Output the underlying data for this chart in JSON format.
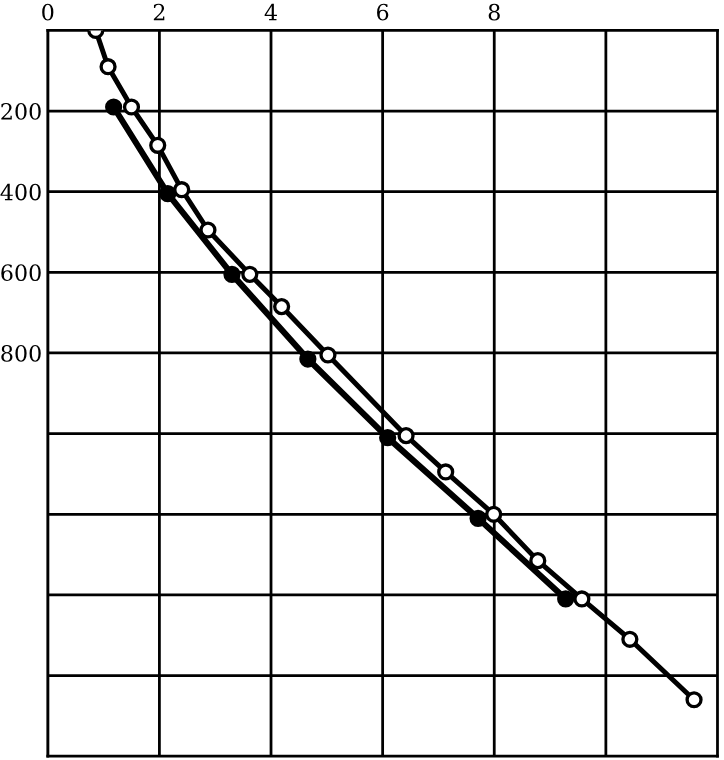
{
  "chart_data": {
    "type": "line",
    "grid": true,
    "marker": "circle",
    "line_style": "solid",
    "xlim": [
      0,
      12
    ],
    "xticks": [
      0,
      2,
      4,
      6,
      8,
      {
        "value": 10,
        "label": null
      }
    ],
    "ylim": [
      1800,
      0
    ],
    "yticks": [
      200,
      400,
      600,
      800,
      {
        "value": 1000,
        "label": null
      },
      {
        "value": 1200,
        "label": null
      },
      {
        "value": 1400,
        "label": null
      },
      {
        "value": 1600,
        "label": null
      }
    ],
    "series": [
      {
        "color": "#000000",
        "x": [
          0.86,
          1.08,
          1.5,
          1.97,
          2.4,
          2.87,
          3.62,
          4.19,
          5.02,
          6.42,
          7.13,
          7.99,
          8.78,
          9.57,
          10.43,
          11.58
        ],
        "values": [
          0,
          90,
          190,
          285,
          395,
          495,
          605,
          685,
          805,
          1005,
          1095,
          1200,
          1315,
          1410,
          1510,
          1660
        ]
      },
      {
        "color": "#000000",
        "x": [
          1.18,
          2.15,
          3.3,
          4.66,
          6.09,
          7.71,
          9.28
        ],
        "values": [
          190,
          405,
          605,
          815,
          1010,
          1210,
          1410
        ]
      }
    ]
  }
}
